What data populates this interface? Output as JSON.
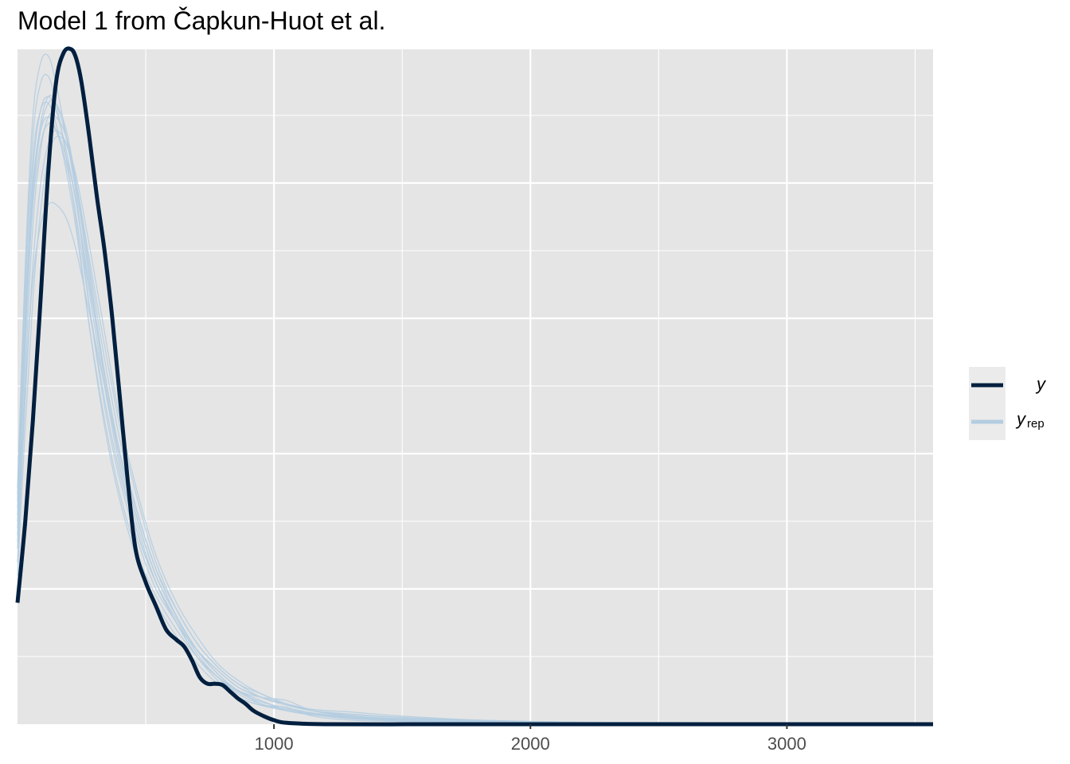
{
  "chart_data": {
    "type": "line",
    "title": "Model 1 from Čapkun-Huot et al.",
    "xlabel": "",
    "ylabel": "",
    "xlim": [
      0,
      3570
    ],
    "x_ticks": [
      1000,
      2000,
      3000
    ],
    "x_tick_labels": [
      "1000",
      "2000",
      "3000"
    ],
    "grid": true,
    "legend_position": "right",
    "legend": {
      "y_label": "y",
      "yrep_label": "y",
      "yrep_subscript": "rep"
    },
    "colors": {
      "y": "#011f3f",
      "yrep": "#b3cde0",
      "panel": "#e5e5e5",
      "grid": "#ffffff"
    },
    "series": [
      {
        "name": "y",
        "x": [
          0,
          30,
          60,
          90,
          120,
          150,
          180,
          210,
          230,
          250,
          280,
          310,
          340,
          370,
          400,
          430,
          460,
          500,
          540,
          580,
          620,
          650,
          680,
          710,
          740,
          770,
          800,
          830,
          860,
          890,
          920,
          960,
          1000,
          1050,
          1200,
          1600,
          2000,
          3000,
          3570
        ],
        "y": [
          0.18,
          0.3,
          0.45,
          0.63,
          0.82,
          0.95,
          0.995,
          1.0,
          0.985,
          0.95,
          0.87,
          0.78,
          0.7,
          0.6,
          0.48,
          0.36,
          0.26,
          0.21,
          0.175,
          0.14,
          0.125,
          0.115,
          0.095,
          0.07,
          0.06,
          0.06,
          0.058,
          0.048,
          0.038,
          0.03,
          0.02,
          0.012,
          0.006,
          0.002,
          0.0,
          0.0,
          0.0,
          0.0,
          0.0
        ]
      },
      {
        "name": "yrep",
        "x": [
          0,
          30,
          60,
          90,
          120,
          150,
          190,
          230,
          280,
          340,
          400,
          470,
          540,
          620,
          700,
          780,
          860,
          950,
          1050,
          1150,
          1300,
          1500,
          1800,
          2200,
          2800,
          3570
        ],
        "y": [
          0.35,
          0.68,
          0.9,
          0.98,
          0.99,
          0.95,
          0.87,
          0.78,
          0.62,
          0.47,
          0.36,
          0.27,
          0.2,
          0.15,
          0.1,
          0.07,
          0.045,
          0.03,
          0.022,
          0.016,
          0.01,
          0.005,
          0.003,
          0.002,
          0.001,
          0.0
        ]
      },
      {
        "name": "yrep",
        "x": [
          0,
          30,
          60,
          90,
          120,
          150,
          190,
          230,
          280,
          340,
          400,
          470,
          540,
          620,
          700,
          780,
          860,
          950,
          1050,
          1150,
          1300,
          1500,
          1800,
          2200,
          2800,
          3570
        ],
        "y": [
          0.3,
          0.6,
          0.82,
          0.91,
          0.93,
          0.91,
          0.85,
          0.77,
          0.64,
          0.5,
          0.38,
          0.28,
          0.21,
          0.15,
          0.1,
          0.065,
          0.04,
          0.028,
          0.025,
          0.012,
          0.006,
          0.004,
          0.002,
          0.001,
          0.001,
          0.0
        ]
      },
      {
        "name": "yrep",
        "x": [
          0,
          30,
          60,
          90,
          120,
          150,
          190,
          230,
          280,
          340,
          400,
          470,
          540,
          620,
          700,
          780,
          860,
          950,
          1050,
          1150,
          1300,
          1500,
          1800,
          2200,
          2800,
          3570
        ],
        "y": [
          0.28,
          0.56,
          0.78,
          0.88,
          0.92,
          0.92,
          0.88,
          0.8,
          0.67,
          0.52,
          0.4,
          0.3,
          0.22,
          0.16,
          0.11,
          0.075,
          0.05,
          0.035,
          0.02,
          0.014,
          0.009,
          0.006,
          0.004,
          0.002,
          0.001,
          0.0
        ]
      },
      {
        "name": "yrep",
        "x": [
          0,
          30,
          60,
          90,
          120,
          150,
          190,
          230,
          280,
          340,
          400,
          470,
          540,
          620,
          700,
          780,
          860,
          950,
          1050,
          1150,
          1300,
          1500,
          1800,
          2200,
          2800,
          3570
        ],
        "y": [
          0.26,
          0.52,
          0.74,
          0.85,
          0.9,
          0.9,
          0.87,
          0.8,
          0.68,
          0.54,
          0.42,
          0.31,
          0.23,
          0.16,
          0.11,
          0.08,
          0.055,
          0.04,
          0.03,
          0.02,
          0.012,
          0.008,
          0.005,
          0.003,
          0.001,
          0.0
        ]
      },
      {
        "name": "yrep",
        "x": [
          0,
          30,
          60,
          90,
          120,
          150,
          190,
          230,
          280,
          340,
          400,
          470,
          540,
          620,
          700,
          780,
          860,
          950,
          1050,
          1150,
          1300,
          1500,
          1800,
          2200,
          2800,
          3570
        ],
        "y": [
          0.33,
          0.64,
          0.84,
          0.91,
          0.92,
          0.89,
          0.82,
          0.73,
          0.59,
          0.45,
          0.34,
          0.25,
          0.19,
          0.14,
          0.1,
          0.07,
          0.05,
          0.03,
          0.02,
          0.015,
          0.01,
          0.006,
          0.003,
          0.002,
          0.001,
          0.0
        ]
      },
      {
        "name": "yrep",
        "x": [
          0,
          30,
          60,
          90,
          120,
          150,
          190,
          230,
          280,
          340,
          400,
          470,
          540,
          620,
          700,
          780,
          860,
          950,
          1050,
          1150,
          1300,
          1500,
          1800,
          2200,
          2800,
          3570
        ],
        "y": [
          0.24,
          0.48,
          0.68,
          0.8,
          0.86,
          0.88,
          0.86,
          0.8,
          0.69,
          0.56,
          0.44,
          0.33,
          0.24,
          0.17,
          0.12,
          0.085,
          0.06,
          0.045,
          0.03,
          0.02,
          0.014,
          0.01,
          0.006,
          0.003,
          0.002,
          0.0
        ]
      },
      {
        "name": "yrep",
        "x": [
          0,
          30,
          60,
          90,
          120,
          150,
          190,
          230,
          280,
          340,
          400,
          470,
          540,
          620,
          700,
          780,
          860,
          950,
          1050,
          1150,
          1300,
          1500,
          1800,
          2200,
          2800,
          3570
        ],
        "y": [
          0.31,
          0.58,
          0.77,
          0.86,
          0.89,
          0.88,
          0.84,
          0.77,
          0.65,
          0.52,
          0.4,
          0.3,
          0.22,
          0.16,
          0.11,
          0.075,
          0.05,
          0.04,
          0.035,
          0.02,
          0.012,
          0.007,
          0.004,
          0.002,
          0.001,
          0.0
        ]
      },
      {
        "name": "yrep",
        "x": [
          0,
          30,
          60,
          90,
          120,
          150,
          190,
          230,
          280,
          340,
          400,
          470,
          540,
          620,
          700,
          780,
          860,
          950,
          1050,
          1150,
          1300,
          1500,
          1800,
          2200,
          2800,
          3570
        ],
        "y": [
          0.22,
          0.44,
          0.63,
          0.76,
          0.84,
          0.87,
          0.86,
          0.81,
          0.71,
          0.58,
          0.45,
          0.34,
          0.25,
          0.18,
          0.13,
          0.09,
          0.065,
          0.045,
          0.03,
          0.02,
          0.012,
          0.008,
          0.005,
          0.003,
          0.001,
          0.0
        ]
      },
      {
        "name": "yrep",
        "x": [
          0,
          30,
          60,
          90,
          120,
          150,
          190,
          230,
          280,
          340,
          400,
          470,
          540,
          620,
          700,
          780,
          860,
          950,
          1050,
          1150,
          1300,
          1500,
          1800,
          2200,
          2800,
          3570
        ],
        "y": [
          0.27,
          0.5,
          0.66,
          0.74,
          0.77,
          0.77,
          0.75,
          0.7,
          0.61,
          0.5,
          0.4,
          0.31,
          0.23,
          0.17,
          0.12,
          0.085,
          0.06,
          0.04,
          0.028,
          0.02,
          0.015,
          0.01,
          0.005,
          0.002,
          0.001,
          0.0
        ]
      },
      {
        "name": "yrep",
        "x": [
          0,
          30,
          60,
          90,
          120,
          150,
          190,
          230,
          280,
          340,
          400,
          470,
          540,
          620,
          700,
          780,
          860,
          950,
          1050,
          1150,
          1300,
          1500,
          1800,
          2200,
          2800,
          3570
        ],
        "y": [
          0.34,
          0.66,
          0.87,
          0.95,
          0.96,
          0.92,
          0.84,
          0.74,
          0.59,
          0.44,
          0.33,
          0.24,
          0.18,
          0.13,
          0.09,
          0.06,
          0.04,
          0.028,
          0.02,
          0.014,
          0.008,
          0.005,
          0.003,
          0.002,
          0.001,
          0.0
        ]
      },
      {
        "name": "yrep",
        "x": [
          0,
          30,
          60,
          90,
          120,
          150,
          190,
          230,
          280,
          340,
          400,
          470,
          540,
          620,
          700,
          780,
          860,
          950,
          1050,
          1150,
          1300,
          1500,
          1800,
          2200,
          2800,
          3570
        ],
        "y": [
          0.29,
          0.57,
          0.79,
          0.89,
          0.93,
          0.92,
          0.87,
          0.79,
          0.66,
          0.51,
          0.39,
          0.29,
          0.21,
          0.15,
          0.11,
          0.08,
          0.055,
          0.04,
          0.03,
          0.022,
          0.018,
          0.012,
          0.006,
          0.003,
          0.002,
          0.0
        ]
      },
      {
        "name": "yrep",
        "x": [
          0,
          30,
          60,
          90,
          120,
          150,
          190,
          230,
          280,
          340,
          400,
          470,
          540,
          620,
          700,
          780,
          860,
          950,
          1050,
          1150,
          1300,
          1500,
          1800,
          2200,
          2800,
          3570
        ],
        "y": [
          0.32,
          0.61,
          0.8,
          0.88,
          0.9,
          0.88,
          0.83,
          0.75,
          0.62,
          0.48,
          0.37,
          0.28,
          0.21,
          0.155,
          0.105,
          0.07,
          0.048,
          0.033,
          0.024,
          0.017,
          0.011,
          0.007,
          0.004,
          0.002,
          0.001,
          0.0
        ]
      }
    ]
  }
}
